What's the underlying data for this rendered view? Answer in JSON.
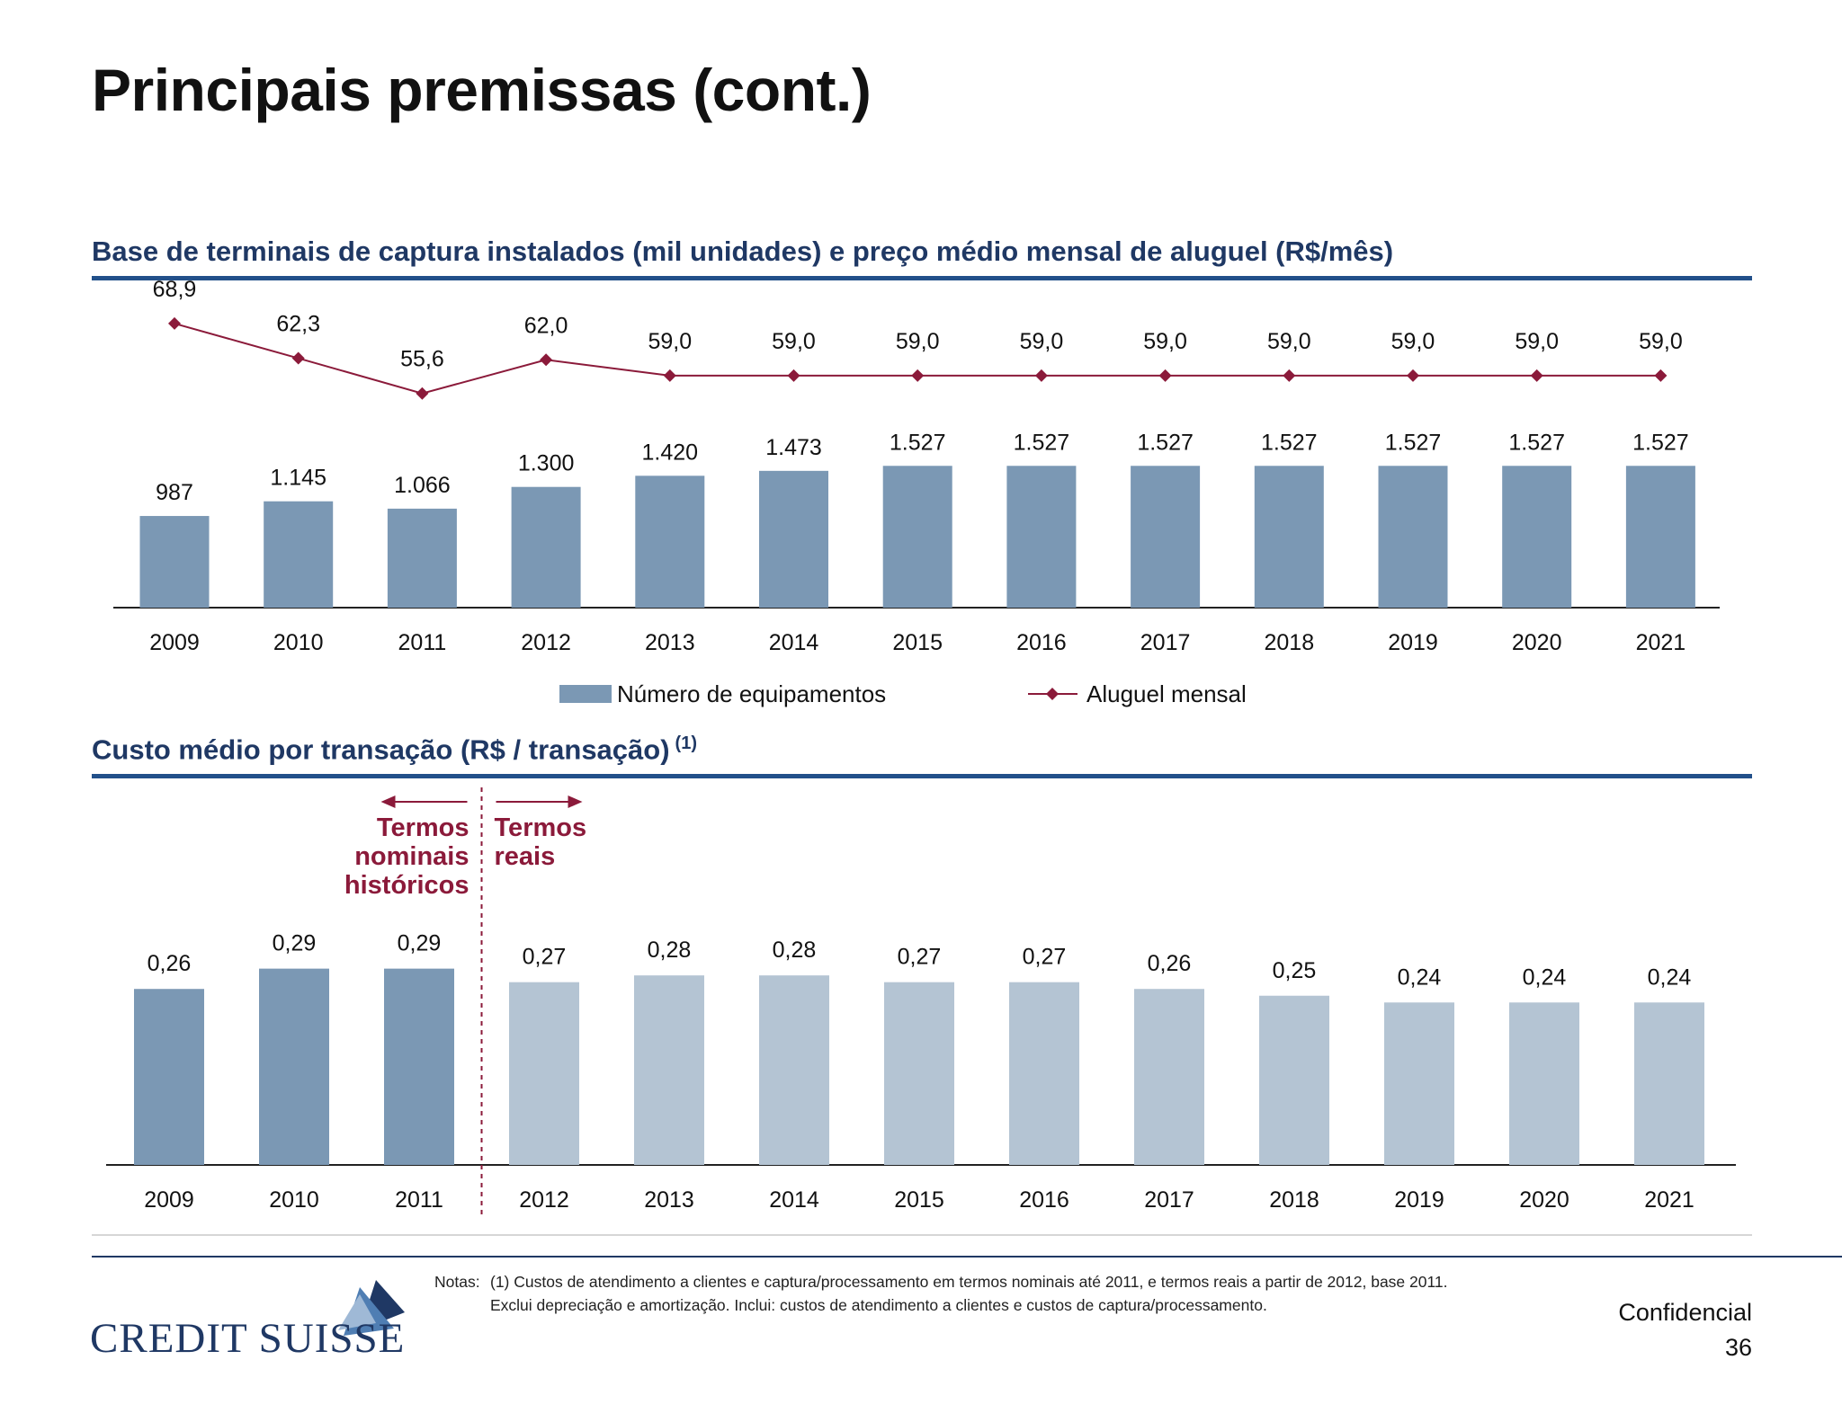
{
  "title": "Principais premissas (cont.)",
  "section1": {
    "title": "Base de terminais de captura instalados (mil unidades) e preço médio mensal de aluguel (R$/mês)"
  },
  "section2": {
    "title": "Custo médio por transação (R$ / transação)",
    "footnote_ref": "(1)"
  },
  "chart_data": [
    {
      "type": "bar",
      "title": "Base de terminais de captura instalados (mil unidades) e preço médio mensal de aluguel (R$/mês)",
      "categories": [
        "2009",
        "2010",
        "2011",
        "2012",
        "2013",
        "2014",
        "2015",
        "2016",
        "2017",
        "2018",
        "2019",
        "2020",
        "2021"
      ],
      "series": [
        {
          "name": "Número de equipamentos",
          "kind": "bar",
          "color": "#7b98b4",
          "values": [
            987,
            1145,
            1066,
            1300,
            1420,
            1473,
            1527,
            1527,
            1527,
            1527,
            1527,
            1527,
            1527
          ],
          "labels": [
            "987",
            "1.145",
            "1.066",
            "1.300",
            "1.420",
            "1.473",
            "1.527",
            "1.527",
            "1.527",
            "1.527",
            "1.527",
            "1.527",
            "1.527"
          ]
        },
        {
          "name": "Aluguel mensal",
          "kind": "line",
          "color": "#8b1a3a",
          "values": [
            68.9,
            62.3,
            55.6,
            62.0,
            59.0,
            59.0,
            59.0,
            59.0,
            59.0,
            59.0,
            59.0,
            59.0,
            59.0
          ],
          "labels": [
            "68,9",
            "62,3",
            "55,6",
            "62,0",
            "59,0",
            "59,0",
            "59,0",
            "59,0",
            "59,0",
            "59,0",
            "59,0",
            "59,0",
            "59,0"
          ]
        }
      ],
      "legend": [
        "Número de equipamentos",
        "Aluguel mensal"
      ],
      "legend_position": "bottom"
    },
    {
      "type": "bar",
      "title": "Custo médio por transação (R$ / transação)",
      "categories": [
        "2009",
        "2010",
        "2011",
        "2012",
        "2013",
        "2014",
        "2015",
        "2016",
        "2017",
        "2018",
        "2019",
        "2020",
        "2021"
      ],
      "values": [
        0.26,
        0.29,
        0.29,
        0.27,
        0.28,
        0.28,
        0.27,
        0.27,
        0.26,
        0.25,
        0.24,
        0.24,
        0.24
      ],
      "labels": [
        "0,26",
        "0,29",
        "0,29",
        "0,27",
        "0,28",
        "0,28",
        "0,27",
        "0,27",
        "0,26",
        "0,25",
        "0,24",
        "0,24",
        "0,24"
      ],
      "colors": {
        "historical": "#7b98b4",
        "real": "#b4c4d3"
      },
      "historical_count": 3,
      "annotations": {
        "left": [
          "Termos",
          "nominais",
          "históricos"
        ],
        "right": [
          "Termos",
          "reais"
        ],
        "color": "#8b1a3a"
      }
    }
  ],
  "footer": {
    "notes_label": "Notas:",
    "notes_line1": "(1) Custos de atendimento a clientes e captura/processamento em termos nominais até 2011, e termos reais a partir de 2012, base 2011.",
    "notes_line2": "Exclui depreciação e amortização. Inclui: custos de atendimento a clientes e custos de captura/processamento.",
    "confidential": "Confidencial",
    "page_number": "36",
    "logo_text": "CREDIT SUISSE"
  }
}
